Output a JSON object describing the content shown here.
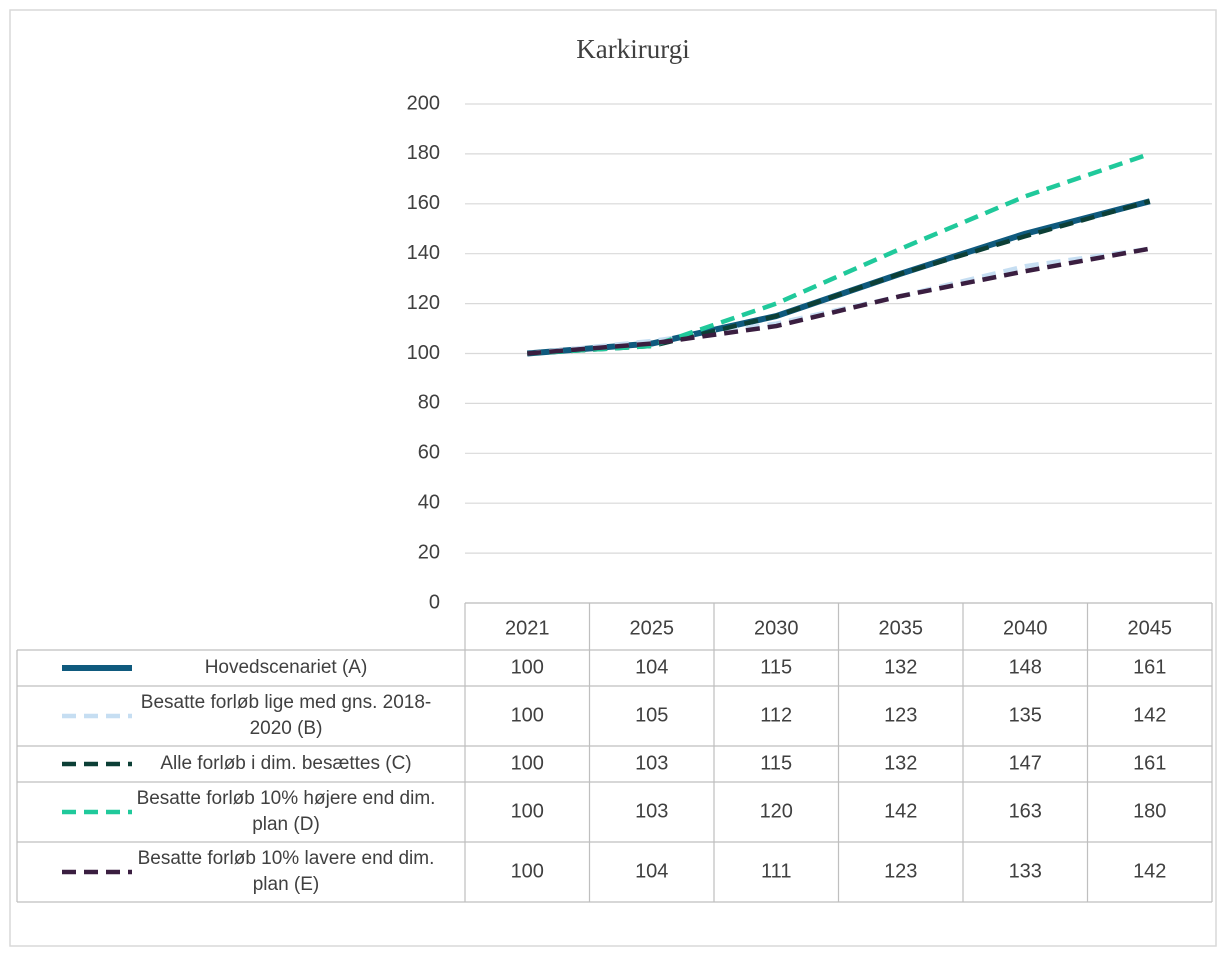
{
  "chart_data": {
    "type": "line",
    "title": "Karkirurgi",
    "categories": [
      "2021",
      "2025",
      "2030",
      "2035",
      "2040",
      "2045"
    ],
    "ylim": [
      0,
      200
    ],
    "yticks": [
      0,
      20,
      40,
      60,
      80,
      100,
      120,
      140,
      160,
      180,
      200
    ],
    "grid": true,
    "series": [
      {
        "name": "Hovedscenariet (A)",
        "color": "#0f5a7e",
        "dash": false,
        "values": [
          100,
          104,
          115,
          132,
          148,
          161
        ]
      },
      {
        "name": "Besatte forløb lige med gns. 2018-2020 (B)",
        "color": "#c6def2",
        "dash": true,
        "values": [
          100,
          105,
          112,
          123,
          135,
          142
        ]
      },
      {
        "name": "Alle forløb i dim. besættes (C)",
        "color": "#0c3f36",
        "dash": true,
        "values": [
          100,
          103,
          115,
          132,
          147,
          161
        ]
      },
      {
        "name": "Besatte forløb 10% højere end dim. plan (D)",
        "color": "#20c99b",
        "dash": true,
        "values": [
          100,
          103,
          120,
          142,
          163,
          180
        ]
      },
      {
        "name": "Besatte forløb 10% lavere end dim. plan (E)",
        "color": "#3a1e40",
        "dash": true,
        "values": [
          100,
          104,
          111,
          123,
          133,
          142
        ]
      }
    ]
  }
}
